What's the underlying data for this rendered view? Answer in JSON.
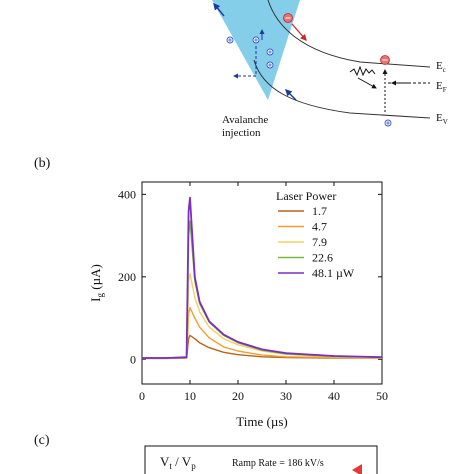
{
  "panel_a": {
    "caption_line1": "Avalanche",
    "caption_line2": "injection",
    "band_labels": {
      "ec_main": "E",
      "ec_sub": "c",
      "ef_main": "E",
      "ef_sub": "F",
      "ev_main": "E",
      "ev_sub": "V"
    }
  },
  "panel_b": {
    "label": "(b)"
  },
  "panel_c": {
    "label": "(c)",
    "ratio_v1": "V",
    "ratio_s1": "t",
    "ratio_sep": " / ",
    "ratio_v2": "V",
    "ratio_s2": "p",
    "ramp_text": "Ramp Rate = 186 kV/s"
  },
  "chart_data": {
    "type": "line",
    "title": "",
    "xlabel": "Time (µs)",
    "ylabel_main": "I",
    "ylabel_sub": "g",
    "ylabel_unit": " (µA)",
    "xlim": [
      0,
      50
    ],
    "ylim": [
      -60,
      430
    ],
    "xticks": [
      0,
      10,
      20,
      30,
      40,
      50
    ],
    "yticks": [
      0,
      200,
      400
    ],
    "legend_title": "Laser Power",
    "legend_position": "top-right",
    "grid": false,
    "series": [
      {
        "name": "1.7",
        "color": "#b5651d",
        "x": [
          0,
          5,
          9.3,
          9.7,
          10,
          11,
          12,
          14,
          17,
          20,
          25,
          30,
          40,
          50
        ],
        "y": [
          2,
          2,
          3,
          50,
          58,
          50,
          40,
          28,
          17,
          11,
          6,
          4,
          3,
          3
        ]
      },
      {
        "name": "4.7",
        "color": "#f0a030",
        "x": [
          0,
          5,
          9.3,
          9.7,
          10,
          11,
          12,
          14,
          17,
          20,
          25,
          30,
          40,
          50
        ],
        "y": [
          2,
          2,
          3,
          110,
          125,
          100,
          78,
          52,
          30,
          20,
          10,
          6,
          4,
          3
        ]
      },
      {
        "name": "7.9",
        "color": "#f5d060",
        "x": [
          0,
          5,
          9.3,
          9.7,
          10,
          11,
          12,
          14,
          17,
          20,
          25,
          30,
          40,
          50
        ],
        "y": [
          3,
          3,
          4,
          190,
          208,
          150,
          115,
          78,
          50,
          35,
          20,
          12,
          6,
          4
        ]
      },
      {
        "name": "22.6",
        "color": "#7cb342",
        "x": [
          0,
          5,
          9.3,
          9.7,
          10,
          11,
          12,
          14,
          17,
          20,
          25,
          30,
          40,
          50
        ],
        "y": [
          3,
          3,
          4,
          300,
          335,
          190,
          135,
          90,
          58,
          40,
          22,
          13,
          7,
          5
        ]
      },
      {
        "name": "48.1 µW",
        "color": "#7b2fbe",
        "x": [
          0,
          5,
          9.3,
          9.7,
          10,
          11,
          12,
          14,
          17,
          20,
          25,
          30,
          40,
          50
        ],
        "y": [
          3,
          3,
          5,
          360,
          392,
          200,
          140,
          92,
          60,
          42,
          24,
          15,
          8,
          5
        ]
      }
    ]
  }
}
